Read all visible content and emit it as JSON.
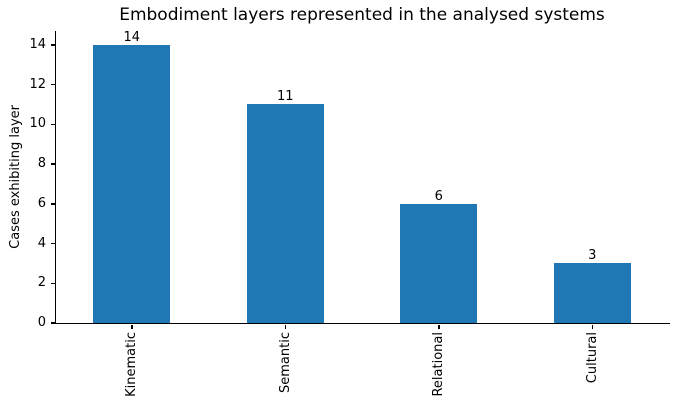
{
  "chart_data": {
    "type": "bar",
    "title": "Embodiment layers represented in the analysed systems",
    "categories": [
      "Kinematic",
      "Semantic",
      "Relational",
      "Cultural"
    ],
    "values": [
      14,
      11,
      6,
      3
    ],
    "bar_value_labels": [
      "14",
      "11",
      "6",
      "3"
    ],
    "xlabel": "",
    "ylabel": "Cases exhibiting layer",
    "yticks": [
      0,
      2,
      4,
      6,
      8,
      10,
      12,
      14
    ],
    "ylim": [
      0,
      14.7
    ],
    "xtick_rotation_deg": 90,
    "bar_width_fraction": 0.5,
    "grid": false,
    "legend": "none",
    "colors": {
      "bar": "#1f77b4",
      "axis": "#000000",
      "text": "#000000",
      "background": "#ffffff"
    }
  }
}
